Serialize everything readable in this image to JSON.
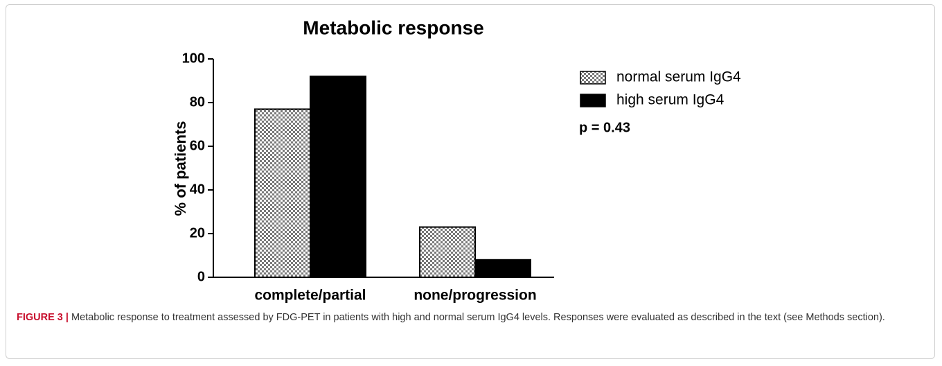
{
  "chart_data": {
    "type": "bar",
    "title": "Metabolic response",
    "ylabel": "% of patients",
    "categories": [
      "complete/partial",
      "none/progression"
    ],
    "series": [
      {
        "name": "normal serum IgG4",
        "color": "#7a7a7a",
        "hatch": "checker",
        "values": [
          77,
          23
        ]
      },
      {
        "name": "high serum IgG4",
        "color": "#000000",
        "values": [
          92,
          8
        ]
      }
    ],
    "ylim": [
      0,
      100
    ],
    "yticks": [
      0,
      20,
      40,
      60,
      80,
      100
    ],
    "annotation": "p = 0.43"
  },
  "caption": {
    "label": "FIGURE 3 |",
    "text": "Metabolic response to treatment assessed by FDG-PET in patients with high and normal serum IgG4 levels. Responses were evaluated as described in the text (see Methods section)."
  }
}
